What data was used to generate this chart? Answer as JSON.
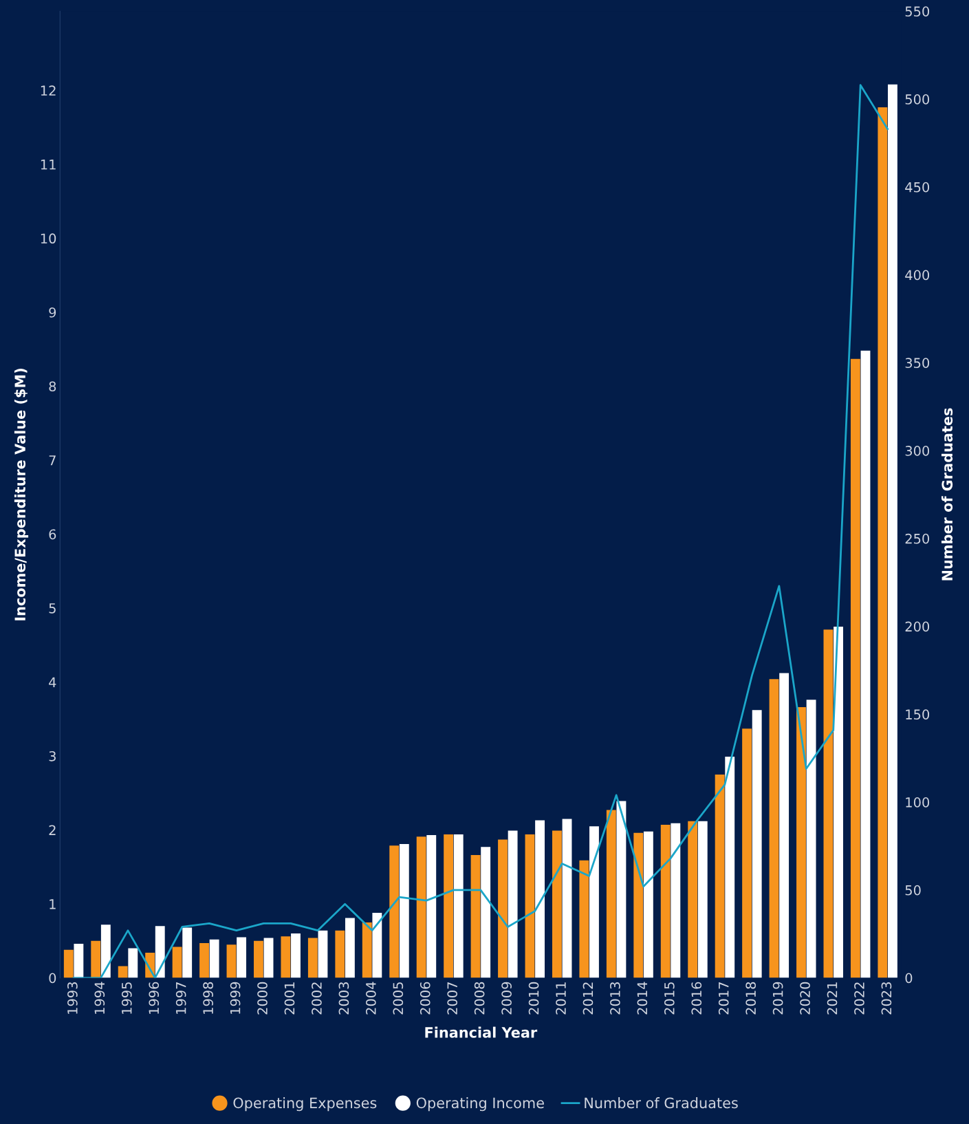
{
  "chart_data": {
    "type": "bar",
    "xlabel": "Financial Year",
    "ylabel": "Income/Expenditure Value ($M)",
    "y2label": "Number of Graduates",
    "categories": [
      "1993",
      "1994",
      "1995",
      "1996",
      "1997",
      "1998",
      "1999",
      "2000",
      "2001",
      "2002",
      "2003",
      "2004",
      "2005",
      "2006",
      "2007",
      "2008",
      "2009",
      "2010",
      "2011",
      "2012",
      "2013",
      "2014",
      "2015",
      "2016",
      "2017",
      "2018",
      "2019",
      "2020",
      "2021",
      "2022",
      "2023"
    ],
    "series": [
      {
        "name": "Operating Expenses",
        "color": "#f7941d",
        "values": [
          0.38,
          0.5,
          0.16,
          0.34,
          0.42,
          0.47,
          0.45,
          0.5,
          0.56,
          0.54,
          0.64,
          0.75,
          1.79,
          1.91,
          1.94,
          1.66,
          1.87,
          1.94,
          1.99,
          1.59,
          2.27,
          1.96,
          2.07,
          2.12,
          2.75,
          3.37,
          4.04,
          3.66,
          4.71,
          8.37,
          11.77
        ]
      },
      {
        "name": "Operating Income",
        "color": "#ffffff",
        "values": [
          0.46,
          0.72,
          0.4,
          0.7,
          0.68,
          0.52,
          0.55,
          0.54,
          0.6,
          0.64,
          0.81,
          0.88,
          1.81,
          1.93,
          1.94,
          1.77,
          1.99,
          2.13,
          2.15,
          2.05,
          2.39,
          1.98,
          2.09,
          2.12,
          2.99,
          3.62,
          4.12,
          3.76,
          4.75,
          8.48,
          12.08
        ]
      },
      {
        "name": "Number of Graduates",
        "type": "line",
        "axis": "y2",
        "color": "#1ba6c9",
        "values": [
          0,
          0,
          27,
          0,
          29,
          31,
          27,
          31,
          31,
          27,
          42,
          27,
          46,
          44,
          50,
          50,
          29,
          38,
          65,
          58,
          104,
          52,
          68,
          90,
          110,
          172,
          223,
          119,
          141,
          508,
          483
        ]
      }
    ],
    "ylim": [
      0,
      13.07
    ],
    "yticks": [
      0,
      1,
      2,
      3,
      4,
      5,
      6,
      7,
      8,
      9,
      10,
      11,
      12
    ],
    "y2lim": [
      0,
      550
    ],
    "y2ticks": [
      0,
      50,
      100,
      150,
      200,
      250,
      300,
      350,
      400,
      450,
      500,
      550
    ],
    "grid": false,
    "legend": "bottom",
    "marker": "none",
    "line_style": "solid"
  }
}
